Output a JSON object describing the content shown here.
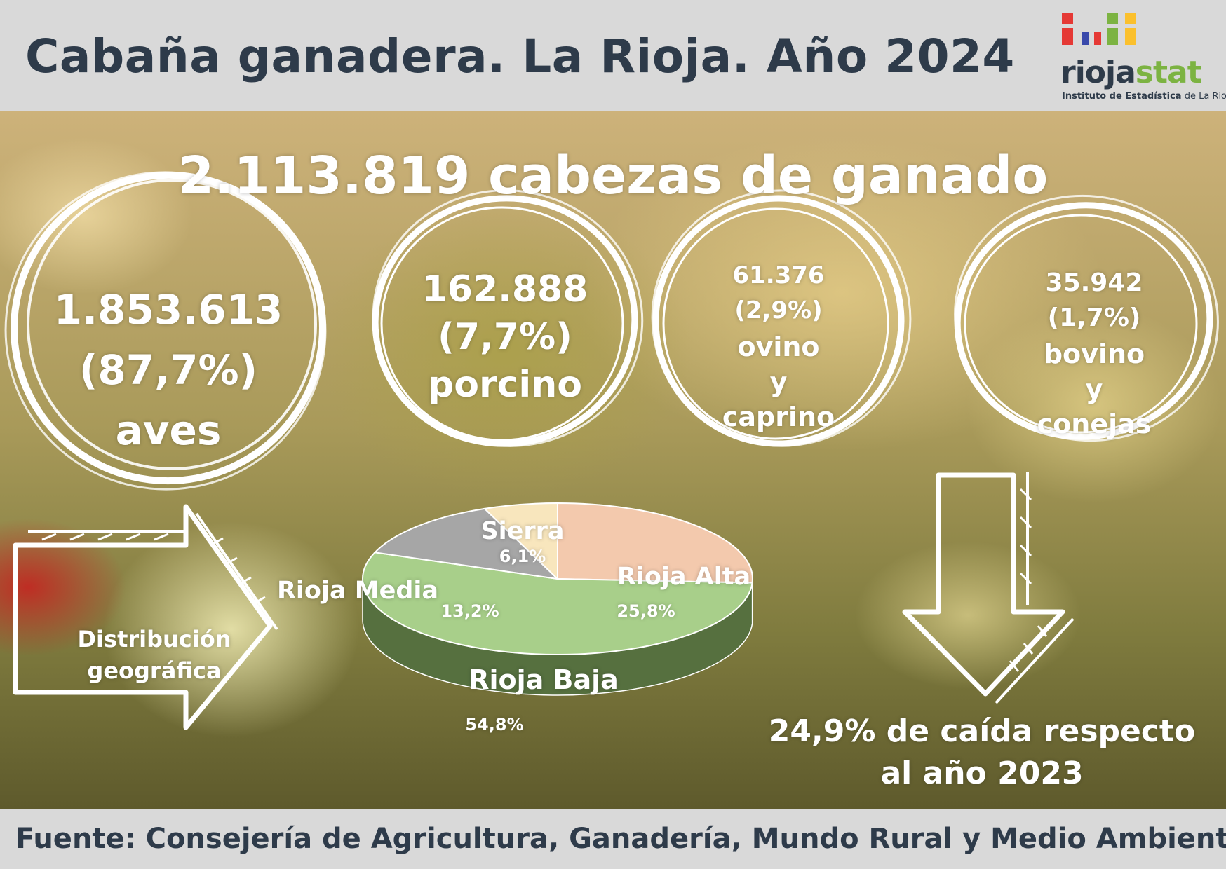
{
  "header": {
    "title": "Cabaña ganadera. La Rioja. Año 2024",
    "logo_rioja": "rioja",
    "logo_stat": "stat",
    "logo_sub_bold": "Instituto de Estadística",
    "logo_sub_rest": "de La Rioja"
  },
  "colors": {
    "title": "#2e3b4a",
    "logo_green": "#7cb342",
    "logo_squares": [
      "#e53935",
      "#3949ab",
      "#e53935",
      "#7cb342",
      "#fbc02d"
    ],
    "pie_rioja_alta": "#f3c9ad",
    "pie_rioja_baja": "#a8cf8a",
    "pie_rioja_media": "#a6a6a6",
    "pie_sierra": "#f8e6bd"
  },
  "total": "2.113.819 cabezas de ganado",
  "circles": [
    {
      "number": "1.853.613",
      "percent": "(87,7%)",
      "label": "aves"
    },
    {
      "number": "162.888",
      "percent": "(7,7%)",
      "label": "porcino"
    },
    {
      "number": "61.376",
      "percent": "(2,9%)",
      "label1": "ovino",
      "label2": "y",
      "label3": "caprino"
    },
    {
      "number": "35.942",
      "percent": "(1,7%)",
      "label1": "bovino",
      "label2": "y",
      "label3": "conejas"
    }
  ],
  "arrow_right_text": [
    "Distribución",
    "geográfica"
  ],
  "decline_text": [
    "24,9% de caída respecto",
    "al año 2023"
  ],
  "chart_data": {
    "type": "pie",
    "title": "",
    "categories": [
      "Rioja Alta",
      "Rioja Baja",
      "Rioja Media",
      "Sierra"
    ],
    "values": [
      25.8,
      54.8,
      13.2,
      6.1
    ],
    "value_labels": [
      "25,8%",
      "54,8%",
      "13,2%",
      "6,1%"
    ],
    "style": "3d"
  },
  "footer": {
    "source": "Fuente: Consejería de Agricultura, Ganadería, Mundo Rural y Medio Ambiente"
  }
}
